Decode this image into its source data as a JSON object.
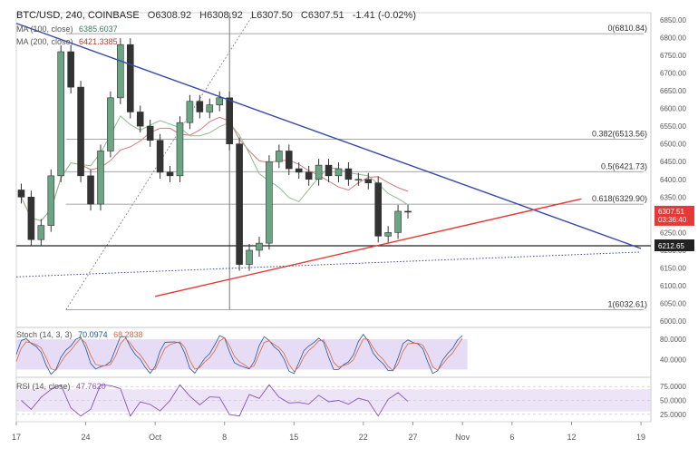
{
  "header": {
    "symbol": "BTC/USD, 240, COINBASE",
    "open": "O6308.92",
    "high": "H6308.92",
    "low": "L6307.50",
    "close": "C6307.51",
    "change": "-1.41 (-0.02%)"
  },
  "legend": {
    "ma100_label": "MA (100, close)",
    "ma100_value": "6385.6037",
    "ma200_label": "MA (200, close)",
    "ma200_value": "6421.3385"
  },
  "colors": {
    "up": "#6ba583",
    "down": "#333333",
    "ma100": "#8fbc8f",
    "ma200": "#d87a7a",
    "blue_trend": "#3949ab",
    "red_trend": "#e53935",
    "stoch_band": "#e1d3f2",
    "price_tag": "#e53935"
  },
  "chart_data": [
    {
      "type": "candlestick",
      "title": "BTC/USD, 240, COINBASE",
      "ylim": [
        5985,
        6870
      ],
      "y_ticks": [
        6850,
        6800,
        6750,
        6700,
        6650,
        6600,
        6550,
        6500,
        6450,
        6400,
        6350,
        6300,
        6250,
        6200,
        6150,
        6100,
        6050,
        6000
      ],
      "y_tick_labels": [
        "6850.00",
        "6800.00",
        "6750.00",
        "6700.00",
        "6650.00",
        "6600.00",
        "6550.00",
        "6500.00",
        "6450.00",
        "6400.00",
        "6350.00",
        "6300.00",
        "6250.00",
        "6200.00",
        "6150.00",
        "6100.00",
        "6050.00",
        "6000.00"
      ],
      "x_tick_labels": [
        "17",
        "24",
        "Oct",
        "8",
        "15",
        "22",
        "27",
        "Nov",
        "6",
        "12",
        "19"
      ],
      "x_tick_day": [
        0,
        7,
        14,
        21,
        28,
        35,
        40,
        45,
        50,
        56,
        63
      ],
      "x_range_days": [
        0,
        64
      ],
      "daily_closes": [
        6350,
        6230,
        6270,
        6410,
        6760,
        6660,
        6410,
        6330,
        6480,
        6630,
        6780,
        6590,
        6550,
        6510,
        6420,
        6410,
        6560,
        6620,
        6590,
        6610,
        6630,
        6500,
        6160,
        6200,
        6220,
        6450,
        6480,
        6430,
        6420,
        6400,
        6440,
        6410,
        6430,
        6400,
        6400,
        6390,
        6240,
        6250,
        6310,
        6307.51
      ],
      "fib_levels": [
        {
          "label": "0(6810.84)",
          "price": 6810.84
        },
        {
          "label": "0.382(6513.56)",
          "price": 6513.56
        },
        {
          "label": "0.5(6421.73)",
          "price": 6421.73
        },
        {
          "label": "0.618(6329.90)",
          "price": 6329.9
        },
        {
          "label": "1(6032.61)",
          "price": 6032.61
        }
      ],
      "horizontal_support": {
        "price": 6212.65,
        "label": "6212.65"
      },
      "current_price": {
        "price": 6307.51,
        "label": "6307.51",
        "countdown": "03:36:40"
      },
      "blue_trendline": {
        "from": {
          "day": 0,
          "price": 6840
        },
        "to": {
          "day": 63,
          "price": 6205
        }
      },
      "red_trendline": {
        "from": {
          "day": 14,
          "price": 6070
        },
        "to": {
          "day": 57,
          "price": 6345
        }
      },
      "blue_dotted_line": {
        "from": {
          "day": 0,
          "price": 6125
        },
        "to": {
          "day": 63,
          "price": 6195
        }
      },
      "ma100": {
        "label": "MA (100, close)",
        "value": 6385.6037
      },
      "ma200": {
        "label": "MA (200, close)",
        "value": 6421.3385
      }
    },
    {
      "type": "line",
      "title": "Stoch (14, 3, 3)",
      "values_label_k": "70.0974",
      "values_label_d": "68.2838",
      "ylim": [
        10,
        100
      ],
      "y_tick_labels": [
        "80.0000",
        "40.0000"
      ],
      "band": [
        20,
        80
      ]
    },
    {
      "type": "line",
      "title": "RSI (14, close)",
      "value_label": "47.7620",
      "ylim": [
        15,
        85
      ],
      "y_tick_labels": [
        "75.0000",
        "50.0000",
        "25.0000"
      ],
      "band": [
        30,
        70
      ]
    }
  ]
}
